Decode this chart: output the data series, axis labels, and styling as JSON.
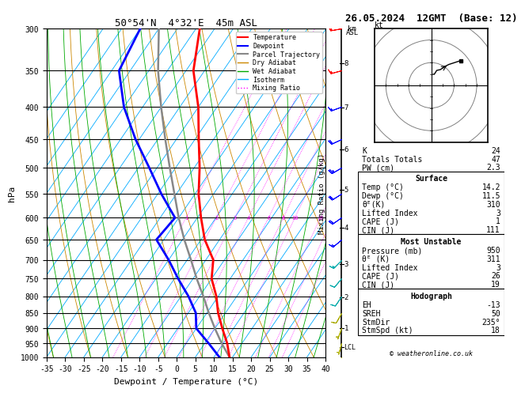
{
  "title_left": "50°54'N  4°32'E  45m ASL",
  "title_right": "26.05.2024  12GMT  (Base: 12)",
  "xlabel": "Dewpoint / Temperature (°C)",
  "ylabel_left": "hPa",
  "ylabel_right_km": "km\nASL",
  "ylabel_mid": "Mixing Ratio (g/kg)",
  "pressure_levels": [
    300,
    350,
    400,
    450,
    500,
    550,
    600,
    650,
    700,
    750,
    800,
    850,
    900,
    950,
    1000
  ],
  "sounding_pressure": [
    1000,
    950,
    900,
    850,
    800,
    750,
    700,
    650,
    600,
    550,
    500,
    450,
    400,
    350,
    300
  ],
  "sounding_temp": [
    14.2,
    11.0,
    7.0,
    3.0,
    -0.5,
    -5.0,
    -8.0,
    -14.0,
    -19.0,
    -24.0,
    -28.5,
    -34.0,
    -40.0,
    -48.0,
    -54.0
  ],
  "sounding_dewp": [
    11.5,
    6.0,
    0.0,
    -3.0,
    -8.0,
    -14.0,
    -20.0,
    -27.0,
    -26.0,
    -34.0,
    -42.0,
    -51.0,
    -60.0,
    -68.0,
    -70.0
  ],
  "parcel_temp": [
    14.2,
    9.5,
    5.0,
    0.5,
    -4.0,
    -9.0,
    -14.0,
    -19.5,
    -25.0,
    -30.5,
    -36.5,
    -43.0,
    -50.0,
    -57.5,
    -65.0
  ],
  "temp_color": "#ff0000",
  "dewp_color": "#0000ff",
  "parcel_color": "#888888",
  "dry_adiabat_color": "#cc8800",
  "wet_adiabat_color": "#00aa00",
  "isotherm_color": "#00aaff",
  "mixing_ratio_color": "#ff00ff",
  "background_color": "#ffffff",
  "xmin": -35,
  "xmax": 40,
  "pressure_min": 300,
  "pressure_max": 1000,
  "mixing_ratio_values": [
    1,
    2,
    3,
    4,
    6,
    8,
    10,
    16,
    20,
    25
  ],
  "km_ticks": [
    1,
    2,
    3,
    4,
    5,
    6,
    7,
    8
  ],
  "km_pressures": [
    898,
    802,
    710,
    622,
    542,
    467,
    401,
    341
  ],
  "lcl_pressure": 963,
  "info_lines": [
    [
      "K",
      "24"
    ],
    [
      "Totals Totals",
      "47"
    ],
    [
      "PW (cm)",
      "2.3"
    ]
  ],
  "surface_lines": [
    [
      "Temp (°C)",
      "14.2"
    ],
    [
      "Dewp (°C)",
      "11.5"
    ],
    [
      "θᴱ(K)",
      "310"
    ],
    [
      "Lifted Index",
      "3"
    ],
    [
      "CAPE (J)",
      "1"
    ],
    [
      "CIN (J)",
      "111"
    ]
  ],
  "mu_lines": [
    [
      "Pressure (mb)",
      "950"
    ],
    [
      "θᴱ (K)",
      "311"
    ],
    [
      "Lifted Index",
      "3"
    ],
    [
      "CAPE (J)",
      "26"
    ],
    [
      "CIN (J)",
      "19"
    ]
  ],
  "hodo_lines": [
    [
      "EH",
      "-13"
    ],
    [
      "SREH",
      "50"
    ],
    [
      "StmDir",
      "235°"
    ],
    [
      "StmSpd (kt)",
      "18"
    ]
  ],
  "copyright": "© weatheronline.co.uk",
  "wind_pressures": [
    1000,
    950,
    900,
    850,
    800,
    750,
    700,
    650,
    600,
    550,
    500,
    450,
    400,
    350,
    300
  ],
  "wind_dirs": [
    190,
    195,
    200,
    210,
    215,
    220,
    225,
    230,
    235,
    238,
    240,
    245,
    250,
    255,
    260
  ],
  "wind_spds": [
    5,
    5,
    7,
    8,
    10,
    12,
    14,
    17,
    20,
    22,
    24,
    20,
    17,
    15,
    18
  ]
}
